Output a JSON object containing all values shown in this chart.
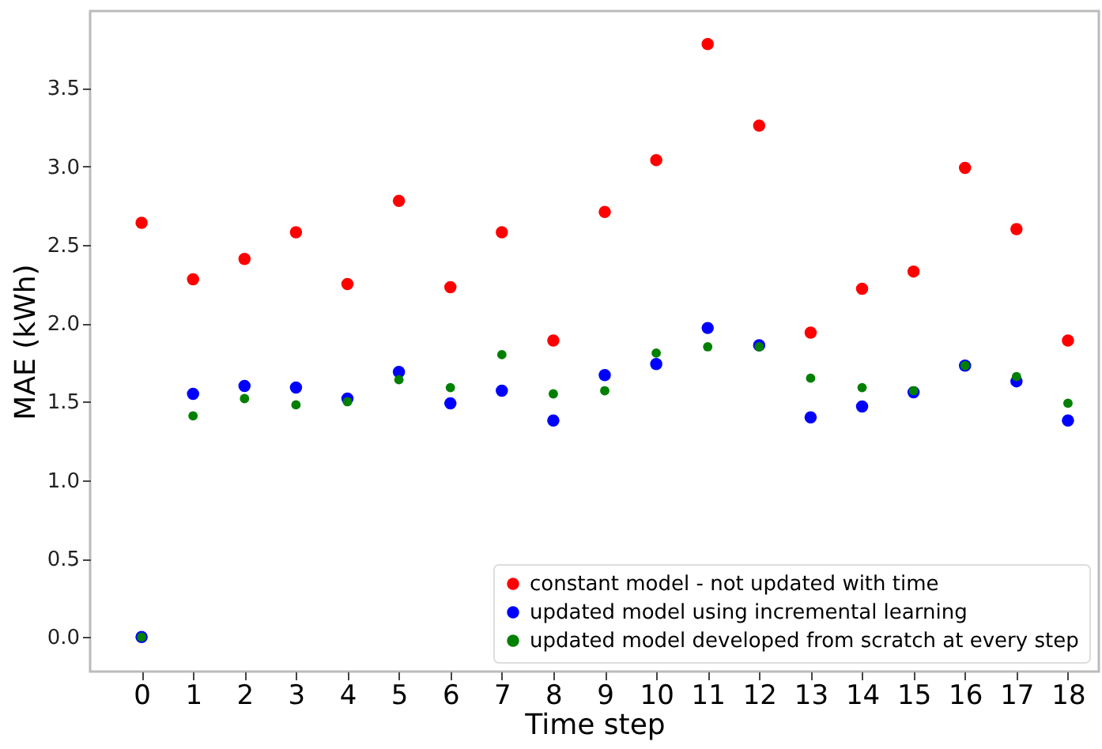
{
  "chart_data": {
    "type": "scatter",
    "xlabel": "Time step",
    "ylabel": "MAE (kWh)",
    "x": [
      0,
      1,
      2,
      3,
      4,
      5,
      6,
      7,
      8,
      9,
      10,
      11,
      12,
      13,
      14,
      15,
      16,
      17,
      18
    ],
    "series": [
      {
        "name": "constant model - not updated with time",
        "color": "#ff0000",
        "values": [
          2.64,
          2.28,
          2.41,
          2.58,
          2.25,
          2.78,
          2.23,
          2.58,
          1.89,
          2.71,
          3.04,
          3.78,
          3.26,
          1.94,
          2.22,
          2.33,
          2.99,
          2.6,
          1.89
        ]
      },
      {
        "name": "updated model using incremental learning",
        "color": "#0000ff",
        "values": [
          0.0,
          1.55,
          1.6,
          1.59,
          1.52,
          1.69,
          1.49,
          1.57,
          1.38,
          1.67,
          1.74,
          1.97,
          1.86,
          1.4,
          1.47,
          1.56,
          1.73,
          1.63,
          1.38
        ]
      },
      {
        "name": "updated model developed from scratch at every step",
        "color": "#008000",
        "values": [
          0.0,
          1.41,
          1.52,
          1.48,
          1.5,
          1.64,
          1.59,
          1.8,
          1.55,
          1.57,
          1.81,
          1.85,
          1.85,
          1.65,
          1.59,
          1.57,
          1.73,
          1.66,
          1.49
        ]
      }
    ],
    "xlim": [
      -1.0,
      18.6
    ],
    "ylim": [
      -0.22,
      3.99
    ],
    "xticks": [
      0,
      1,
      2,
      3,
      4,
      5,
      6,
      7,
      8,
      9,
      10,
      11,
      12,
      13,
      14,
      15,
      16,
      17,
      18
    ],
    "yticks": [
      {
        "value": 0,
        "label": "0.0"
      },
      0.5,
      {
        "value": 1,
        "label": "1.0"
      },
      1.5,
      {
        "value": 2,
        "label": "2.0"
      },
      2.5,
      {
        "value": 3,
        "label": "3.0"
      },
      3.5
    ],
    "grid": false,
    "legend": "bottom right",
    "marker": "circle"
  }
}
